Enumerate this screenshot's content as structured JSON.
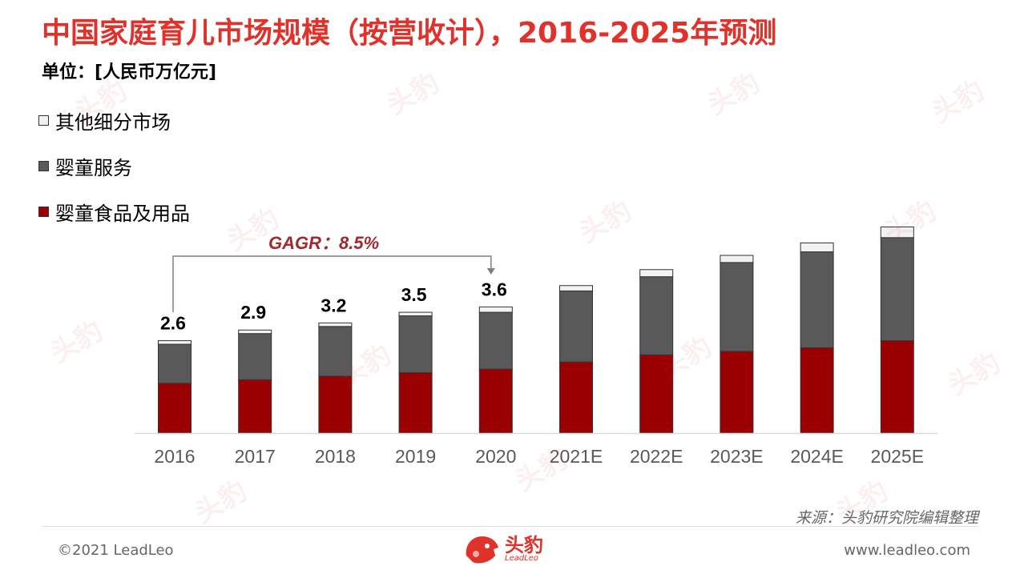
{
  "page": {
    "title": "中国家庭育儿市场规模（按营收计），2016-2025年预测",
    "unit": "单位：[人民币万亿元]",
    "source": "来源：头豹研究院编辑整理",
    "copyright": "©2021 LeadLeo",
    "website": "www.leadleo.com",
    "logo_main": "头豹",
    "logo_sub": "LeadLeo",
    "watermark_text": "头豹",
    "gagr_label": "GAGR：8.5%"
  },
  "colors": {
    "title": "#e0312a",
    "food": "#9b0000",
    "service": "#595959",
    "other": "#f2f2f2",
    "gagr": "#a3282f"
  },
  "legend": [
    {
      "label": "其他细分市场",
      "color": "#f2f2f2"
    },
    {
      "label": "婴童服务",
      "color": "#595959"
    },
    {
      "label": "婴童食品及用品",
      "color": "#9b0000"
    }
  ],
  "chart_data": {
    "type": "bar",
    "stacked": true,
    "categories": [
      "2016",
      "2017",
      "2018",
      "2019",
      "2020",
      "2021E",
      "2022E",
      "2023E",
      "2024E",
      "2025E"
    ],
    "series": [
      {
        "name": "婴童食品及用品",
        "values": [
          1.4,
          1.5,
          1.6,
          1.7,
          1.8,
          2.0,
          2.2,
          2.3,
          2.4,
          2.6
        ]
      },
      {
        "name": "婴童服务",
        "values": [
          1.1,
          1.3,
          1.4,
          1.6,
          1.6,
          2.0,
          2.2,
          2.5,
          2.7,
          2.9
        ]
      },
      {
        "name": "其他细分市场",
        "values": [
          0.1,
          0.1,
          0.1,
          0.1,
          0.15,
          0.15,
          0.2,
          0.2,
          0.25,
          0.3
        ]
      }
    ],
    "totals": [
      2.6,
      2.9,
      3.2,
      3.5,
      3.6,
      null,
      null,
      null,
      null,
      null
    ],
    "total_labels": [
      "2.6",
      "2.9",
      "3.2",
      "3.5",
      "3.6",
      "",
      "",
      "",
      "",
      ""
    ],
    "annotation": {
      "text": "GAGR：8.5%",
      "from": "2016",
      "to": "2020"
    },
    "ylim": [
      0,
      6
    ],
    "legend_position": "top-left",
    "grid": false
  }
}
